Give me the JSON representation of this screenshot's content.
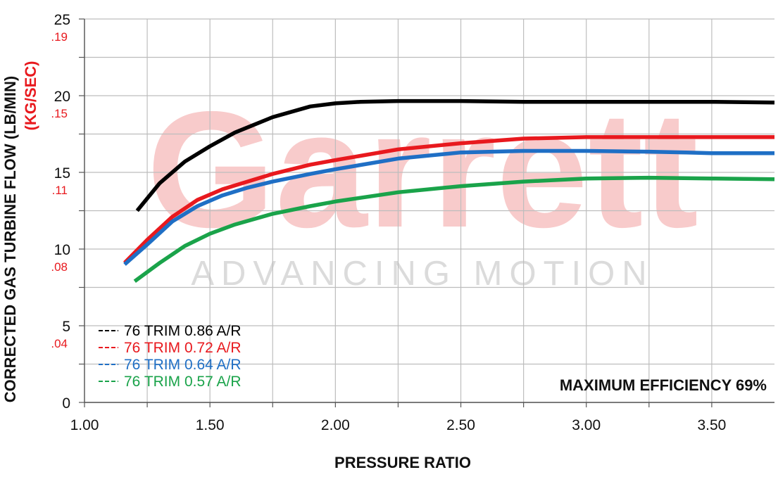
{
  "chart_data": {
    "type": "line",
    "xlabel": "PRESSURE RATIO",
    "ylabel_primary": "CORRECTED GAS TURBINE FLOW (LB/MIN)",
    "ylabel_secondary": "(KG/SEC)",
    "xlim": [
      1.0,
      3.75
    ],
    "ylim": [
      0,
      25
    ],
    "grid": true,
    "x_ticks": [
      1.0,
      1.25,
      1.5,
      1.75,
      2.0,
      2.25,
      2.5,
      2.75,
      3.0,
      3.25,
      3.5
    ],
    "x_tick_labels": [
      {
        "value": 1.0,
        "label": "1.00"
      },
      {
        "value": 1.5,
        "label": "1.50"
      },
      {
        "value": 2.0,
        "label": "2.00"
      },
      {
        "value": 2.5,
        "label": "2.50"
      },
      {
        "value": 3.0,
        "label": "3.00"
      },
      {
        "value": 3.5,
        "label": "3.50"
      }
    ],
    "y_ticks": [
      0,
      2.5,
      5,
      7.5,
      10,
      12.5,
      15,
      17.5,
      20,
      22.5,
      25
    ],
    "y_tick_labels": [
      {
        "value": 0,
        "label": "0"
      },
      {
        "value": 5,
        "label": "5"
      },
      {
        "value": 10,
        "label": "10"
      },
      {
        "value": 15,
        "label": "15"
      },
      {
        "value": 20,
        "label": "20"
      },
      {
        "value": 25,
        "label": "25"
      }
    ],
    "y_secondary_labels": [
      {
        "value": 5,
        "label": ".04"
      },
      {
        "value": 10,
        "label": ".08"
      },
      {
        "value": 15,
        "label": ".11"
      },
      {
        "value": 20,
        "label": ".15"
      },
      {
        "value": 25,
        "label": ".19"
      }
    ],
    "legend_position": "bottom-left",
    "annotation": "MAXIMUM EFFICIENCY 69%",
    "watermark_text": [
      "Garrett",
      "ADVANCING MOTION"
    ],
    "series": [
      {
        "name": "76 TRIM 0.86 A/R",
        "color": "#000000",
        "x": [
          1.21,
          1.3,
          1.4,
          1.5,
          1.6,
          1.75,
          1.9,
          2.0,
          2.1,
          2.25,
          2.5,
          2.75,
          3.0,
          3.25,
          3.5,
          3.75
        ],
        "y": [
          12.5,
          14.3,
          15.7,
          16.7,
          17.6,
          18.6,
          19.3,
          19.5,
          19.6,
          19.65,
          19.65,
          19.6,
          19.6,
          19.6,
          19.6,
          19.55
        ]
      },
      {
        "name": "76 TRIM 0.72 A/R",
        "color": "#e8191e",
        "x": [
          1.16,
          1.25,
          1.35,
          1.45,
          1.55,
          1.65,
          1.75,
          1.9,
          2.0,
          2.25,
          2.5,
          2.75,
          3.0,
          3.25,
          3.5,
          3.75
        ],
        "y": [
          9.1,
          10.6,
          12.1,
          13.2,
          13.9,
          14.4,
          14.9,
          15.5,
          15.8,
          16.5,
          16.9,
          17.2,
          17.3,
          17.3,
          17.3,
          17.3
        ]
      },
      {
        "name": "76 TRIM 0.64 A/R",
        "color": "#1f6fc5",
        "x": [
          1.16,
          1.25,
          1.35,
          1.45,
          1.55,
          1.65,
          1.75,
          1.9,
          2.0,
          2.25,
          2.5,
          2.75,
          3.0,
          3.25,
          3.4,
          3.5,
          3.75
        ],
        "y": [
          9.0,
          10.3,
          11.8,
          12.8,
          13.5,
          14.0,
          14.4,
          14.9,
          15.2,
          15.9,
          16.3,
          16.4,
          16.4,
          16.35,
          16.3,
          16.25,
          16.25
        ]
      },
      {
        "name": "76 TRIM 0.57 A/R",
        "color": "#1aa34a",
        "x": [
          1.2,
          1.3,
          1.4,
          1.5,
          1.6,
          1.75,
          1.9,
          2.0,
          2.25,
          2.5,
          2.75,
          3.0,
          3.25,
          3.5,
          3.75
        ],
        "y": [
          7.9,
          9.1,
          10.2,
          11.0,
          11.6,
          12.3,
          12.8,
          13.1,
          13.7,
          14.1,
          14.4,
          14.6,
          14.65,
          14.6,
          14.55
        ]
      }
    ]
  }
}
